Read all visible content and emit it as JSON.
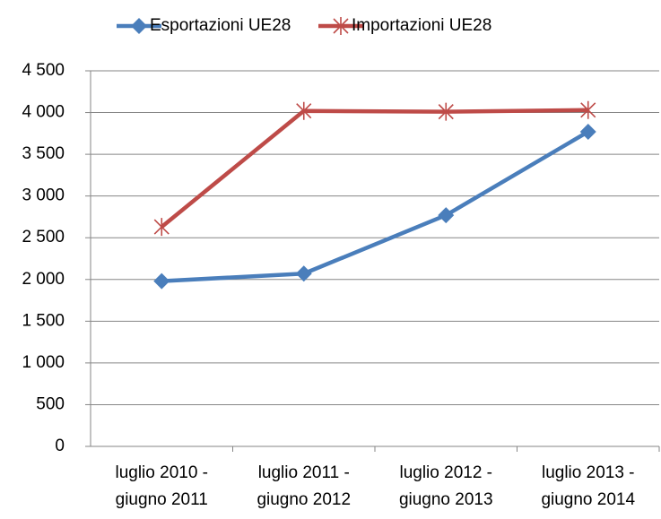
{
  "chart_data": {
    "type": "line",
    "categories": [
      "luglio 2010 - giugno 2011",
      "luglio 2011 - giugno 2012",
      "luglio 2012 - giugno 2013",
      "luglio 2013 - giugno 2014"
    ],
    "series": [
      {
        "name": "Esportazioni UE28",
        "color": "#4a7ebb",
        "marker": "diamond",
        "values": [
          1980,
          2070,
          2770,
          3770
        ]
      },
      {
        "name": "Importazioni UE28",
        "color": "#be4b48",
        "marker": "star",
        "values": [
          2630,
          4020,
          4010,
          4030
        ]
      }
    ],
    "ylim": [
      0,
      4500
    ],
    "yticks": [
      0,
      500,
      {
        "value": 1000,
        "label": "1 000"
      },
      {
        "value": 1500,
        "label": "1 500"
      },
      {
        "value": 2000,
        "label": "2 000"
      },
      {
        "value": 2500,
        "label": "2 500"
      },
      {
        "value": 3000,
        "label": "3 000"
      },
      {
        "value": 3500,
        "label": "3 500"
      },
      {
        "value": 4000,
        "label": "4 000"
      },
      {
        "value": 4500,
        "label": "4 500"
      }
    ],
    "grid": true,
    "legend": "top"
  }
}
